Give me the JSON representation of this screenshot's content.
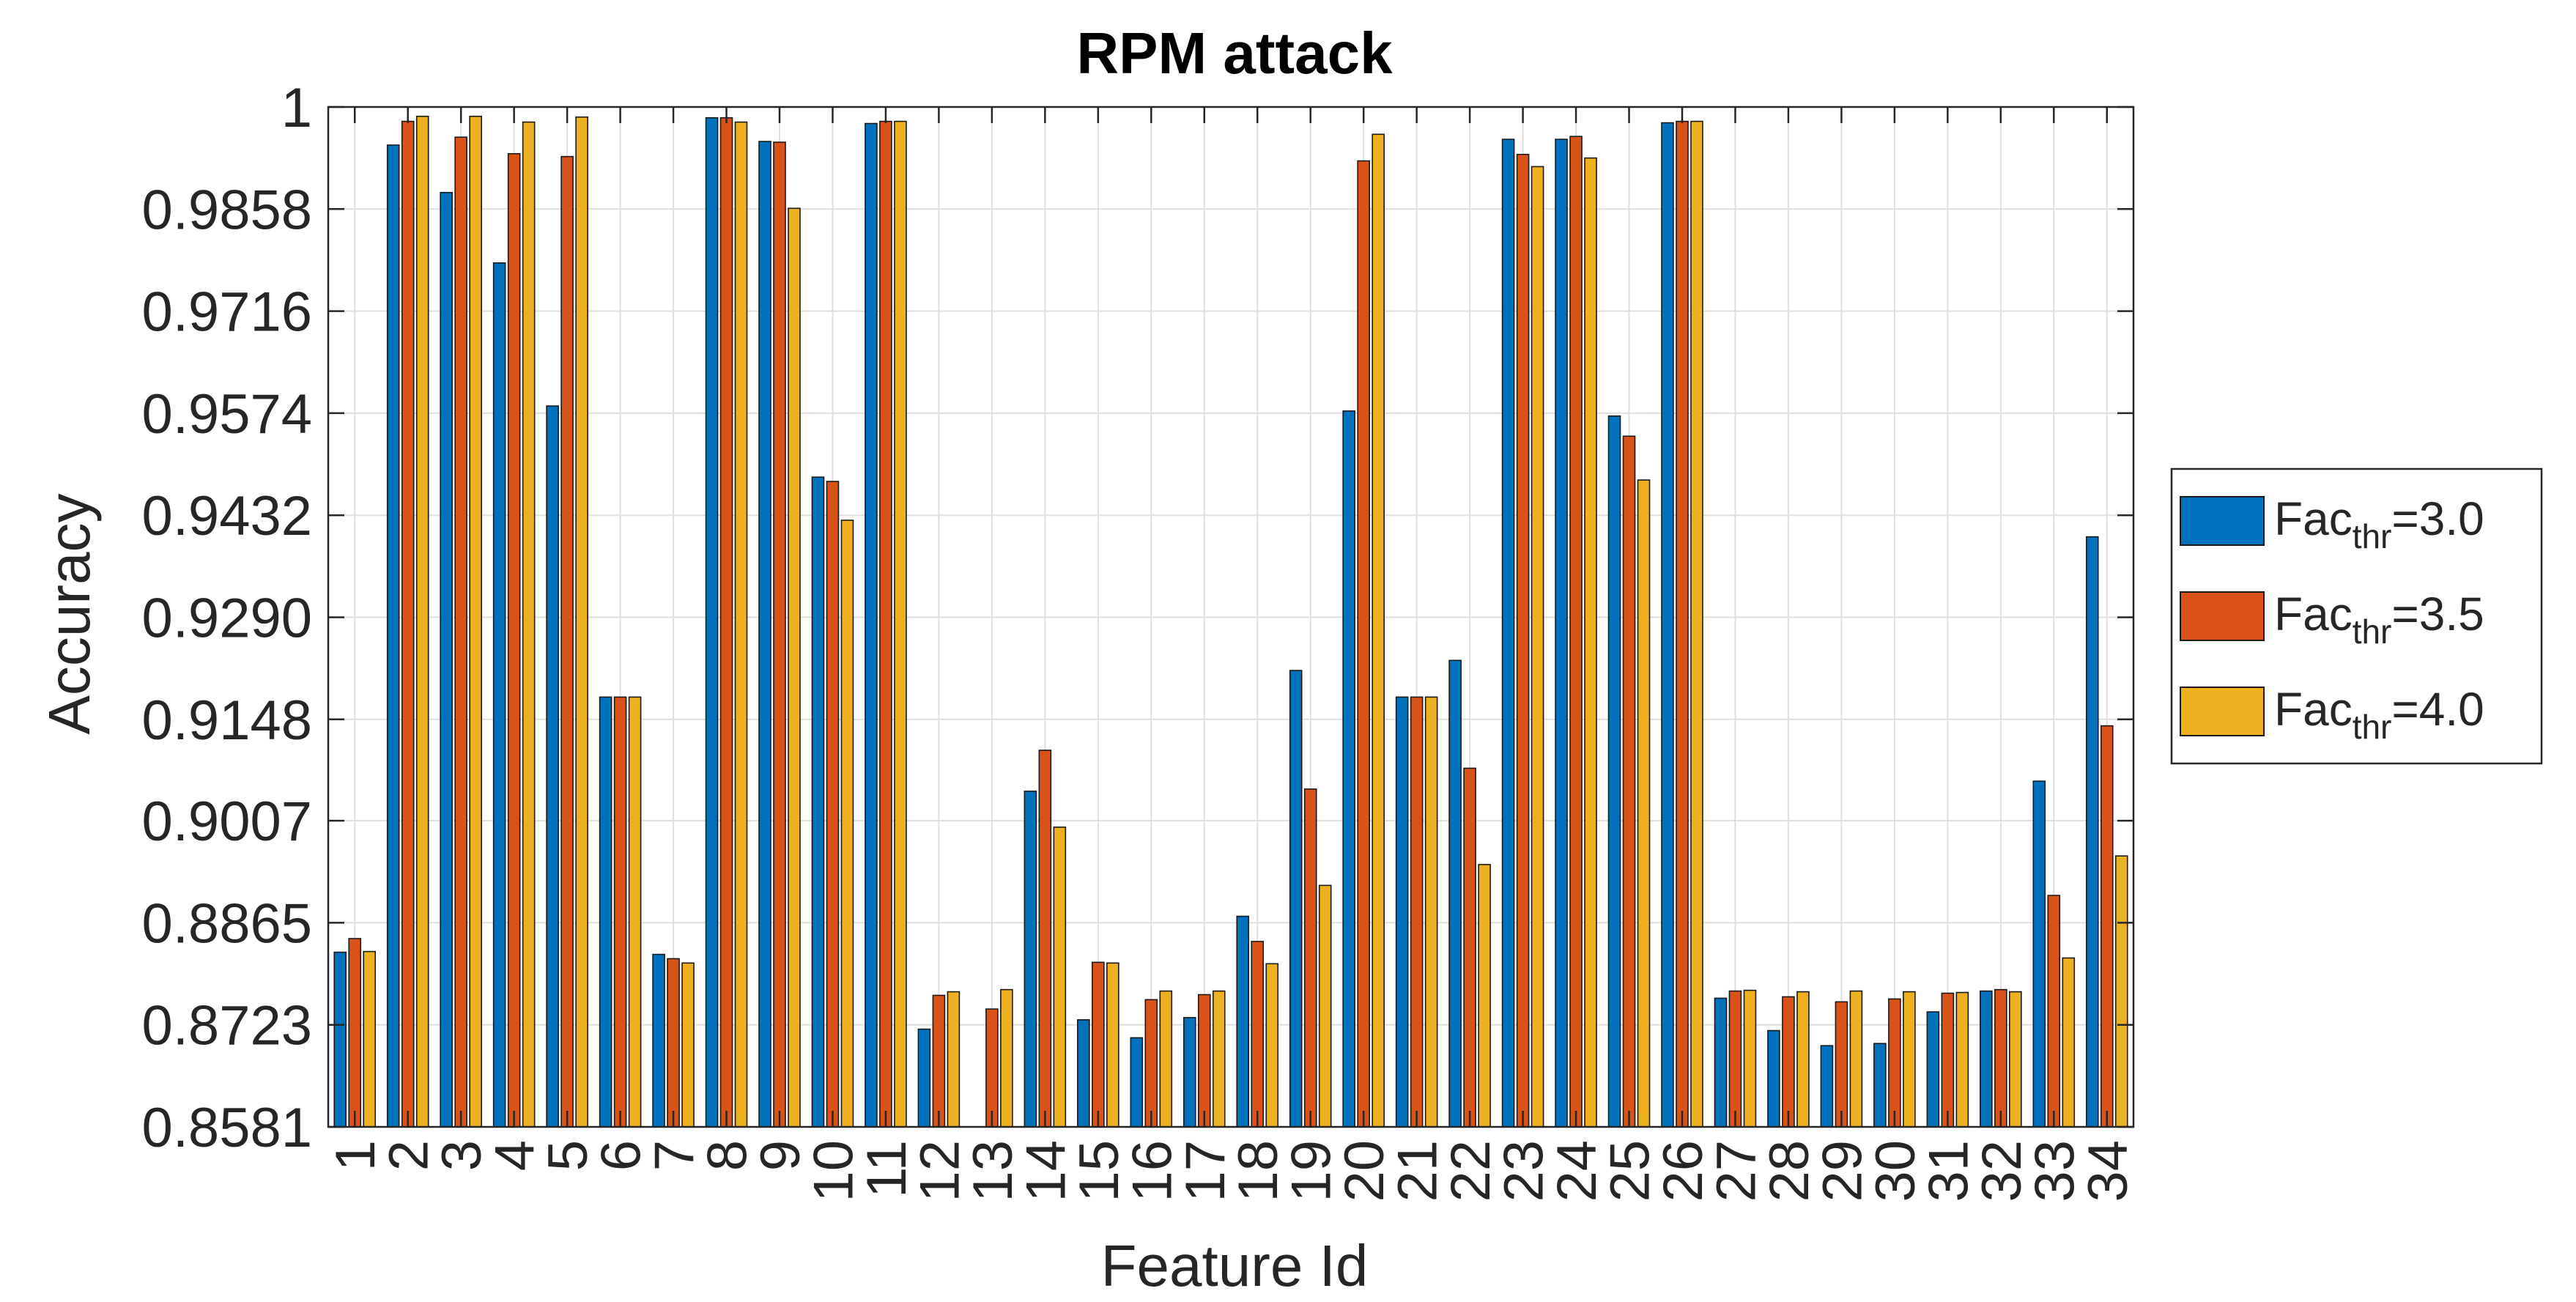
{
  "chart_data": {
    "type": "bar",
    "title": "RPM attack",
    "xlabel": "Feature Id",
    "ylabel": "Accuracy",
    "ylim": [
      0.8581,
      1.0
    ],
    "yticks": [
      "0.8581",
      "0.8723",
      "0.8865",
      "0.9007",
      "0.9148",
      "0.9290",
      "0.9432",
      "0.9574",
      "0.9716",
      "0.9858",
      "1"
    ],
    "grid": true,
    "legend_position": "right",
    "categories": [
      "1",
      "2",
      "3",
      "4",
      "5",
      "6",
      "7",
      "8",
      "9",
      "10",
      "11",
      "12",
      "13",
      "14",
      "15",
      "16",
      "17",
      "18",
      "19",
      "20",
      "21",
      "22",
      "23",
      "24",
      "25",
      "26",
      "27",
      "28",
      "29",
      "30",
      "31",
      "32",
      "33",
      "34"
    ],
    "series": [
      {
        "name": "Fac_thr=3.0",
        "legend_base": "Fac",
        "legend_sub": "thr",
        "legend_value": "=3.0",
        "color": "#0072BD",
        "values": [
          0.8824,
          0.9947,
          0.9881,
          0.9783,
          0.9584,
          0.9179,
          0.8821,
          0.9985,
          0.9952,
          0.9485,
          0.9977,
          0.8717,
          null,
          0.9048,
          0.873,
          0.8705,
          0.8733,
          0.8874,
          0.9216,
          0.9577,
          0.9179,
          0.923,
          0.9955,
          0.9955,
          0.957,
          0.9978,
          0.876,
          0.8715,
          0.8694,
          0.8697,
          0.8741,
          0.877,
          0.9062,
          0.9402
        ]
      },
      {
        "name": "Fac_thr=3.5",
        "legend_base": "Fac",
        "legend_sub": "thr",
        "legend_value": "=3.5",
        "color": "#D95319",
        "values": [
          0.8843,
          0.998,
          0.9958,
          0.9935,
          0.9931,
          0.9179,
          0.8815,
          0.9985,
          0.9951,
          0.9479,
          0.998,
          0.8764,
          0.8745,
          0.9105,
          0.881,
          0.8758,
          0.8765,
          0.8839,
          0.9051,
          0.9925,
          0.9179,
          0.908,
          0.9934,
          0.9959,
          0.9542,
          0.998,
          0.877,
          0.8762,
          0.8755,
          0.8759,
          0.8767,
          0.8772,
          0.8903,
          0.9139
        ]
      },
      {
        "name": "Fac_thr=4.0",
        "legend_base": "Fac",
        "legend_sub": "thr",
        "legend_value": "=4.0",
        "color": "#EDB120",
        "values": [
          0.8825,
          0.9987,
          0.9987,
          0.9979,
          0.9986,
          0.9179,
          0.8809,
          0.9979,
          0.9859,
          0.9425,
          0.998,
          0.8769,
          0.8772,
          0.8998,
          0.8809,
          0.877,
          0.877,
          0.8808,
          0.8917,
          0.9962,
          0.9179,
          0.8946,
          0.9917,
          0.9929,
          0.9481,
          0.998,
          0.8771,
          0.8769,
          0.877,
          0.8769,
          0.8768,
          0.8769,
          0.8816,
          0.8958
        ]
      }
    ]
  }
}
